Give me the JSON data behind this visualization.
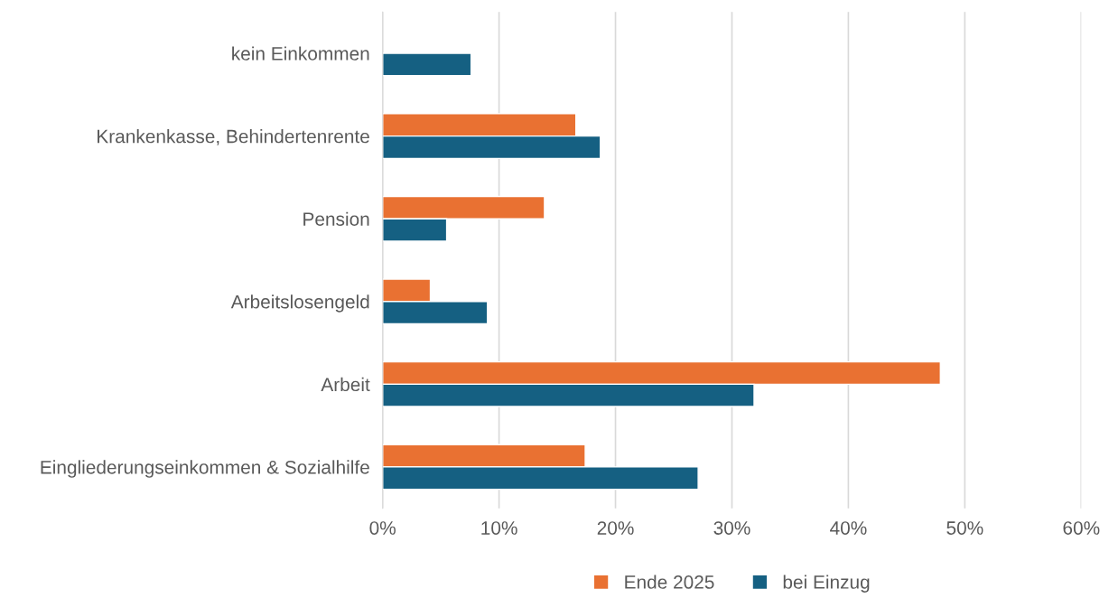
{
  "chart_data": {
    "type": "bar",
    "orientation": "horizontal",
    "categories": [
      "kein Einkommen",
      "Krankenkasse, Behindertenrente",
      "Pension",
      "Arbeitslosengeld",
      "Arbeit",
      "Eingliederungseinkommen & Sozialhilfe"
    ],
    "series": [
      {
        "name": "Ende 2025",
        "color": "#e97132",
        "values": [
          null,
          16.6,
          13.9,
          4.1,
          47.9,
          17.4
        ]
      },
      {
        "name": "bei Einzug",
        "color": "#156082",
        "values": [
          7.6,
          18.7,
          5.5,
          9.0,
          31.9,
          27.1
        ]
      }
    ],
    "xlim": [
      0,
      60
    ],
    "xticks": [
      {
        "value": 0,
        "label": "0%"
      },
      {
        "value": 10,
        "label": "10%"
      },
      {
        "value": 20,
        "label": "20%"
      },
      {
        "value": 30,
        "label": "30%"
      },
      {
        "value": 40,
        "label": "40%"
      },
      {
        "value": 50,
        "label": "50%"
      },
      {
        "value": 60,
        "label": "60%"
      }
    ],
    "grid": "x",
    "legend": "bottom"
  }
}
